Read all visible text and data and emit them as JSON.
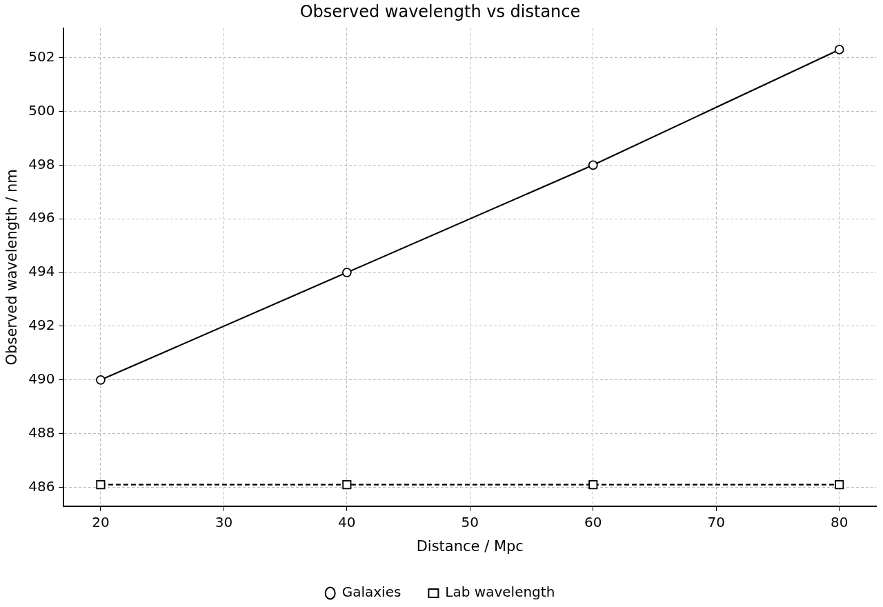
{
  "chart_data": {
    "type": "line",
    "title": "Observed wavelength vs distance",
    "xlabel": "Distance / Mpc",
    "ylabel": "Observed wavelength / nm",
    "x": [
      20,
      40,
      60,
      80
    ],
    "series": [
      {
        "name": "Galaxies",
        "color": "#000000",
        "values": [
          490,
          494,
          498,
          502.3
        ],
        "marker": "circle",
        "line_style": "solid"
      },
      {
        "name": "Lab wavelength",
        "color": "#000000",
        "values": [
          486.1,
          486.1,
          486.1,
          486.1
        ],
        "marker": "square",
        "line_style": "dashed"
      }
    ],
    "xlim": [
      17,
      83
    ],
    "xticks": [
      20,
      30,
      40,
      50,
      60,
      70,
      80
    ],
    "ylim": [
      485.3,
      503.1
    ],
    "yticks": [
      486,
      488,
      490,
      492,
      494,
      496,
      498,
      500,
      502
    ],
    "grid": true,
    "legend": "bottom"
  }
}
